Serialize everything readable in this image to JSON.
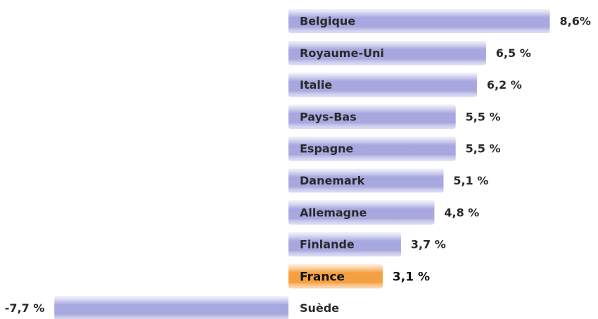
{
  "chart_data": {
    "type": "bar",
    "orientation": "horizontal",
    "categories": [
      "Belgique",
      "Royaume-Uni",
      "Italie",
      "Pays-Bas",
      "Espagne",
      "Danemark",
      "Allemagne",
      "Finlande",
      "France",
      "Suède"
    ],
    "values": [
      8.6,
      6.5,
      6.2,
      5.5,
      5.5,
      5.1,
      4.8,
      3.7,
      3.1,
      -7.7
    ],
    "value_labels": [
      "8,6%",
      "6,5 %",
      "6,2 %",
      "5,5 %",
      "5,5 %",
      "5,1 %",
      "4,8 %",
      "3,7 %",
      "3,1 %",
      "-7,7 %"
    ],
    "colors": [
      "#a8a8e0",
      "#a8a8e0",
      "#a8a8e0",
      "#a8a8e0",
      "#a8a8e0",
      "#a8a8e0",
      "#a8a8e0",
      "#a8a8e0",
      "#f5a040",
      "#a8a8e0"
    ],
    "highlight": "France"
  }
}
